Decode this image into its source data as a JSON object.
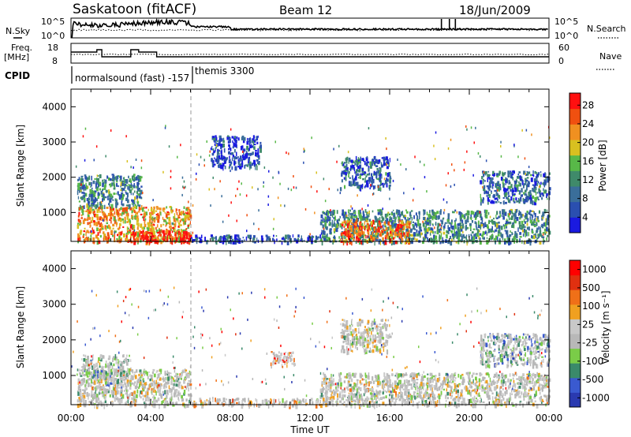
{
  "header": {
    "site": "Saskatoon (fitACF)",
    "beam": "Beam 12",
    "date": "18/Jun/2009"
  },
  "panels": {
    "nsky": {
      "left_label": "N.Sky",
      "right_label": "N.Search",
      "y_ticks": [
        "10^5",
        "10^0"
      ],
      "right_ticks": [
        "10^5",
        "10^0"
      ]
    },
    "freq": {
      "left_label_1": "Freq.",
      "left_label_2": "[MHz]",
      "right_label": "Nave",
      "y_ticks": [
        "18",
        "8"
      ],
      "right_ticks": [
        "60",
        "0"
      ]
    },
    "cpid": {
      "label": "CPID",
      "mode_1": "normalsound (fast) -157",
      "mode_2": "themis 3300"
    }
  },
  "colors": {
    "power": [
      "#1a1ae0",
      "#2a4fb0",
      "#3a6e9a",
      "#3f8a6a",
      "#58b848",
      "#d8c020",
      "#f09020",
      "#f05010",
      "#ff1010"
    ],
    "velocity": [
      "#2a3ab0",
      "#3a5ad0",
      "#3a8a6a",
      "#7acc48",
      "#b8b8b8",
      "#c8c8c8",
      "#f0a020",
      "#f07018",
      "#e03010",
      "#ff0000"
    ]
  },
  "chart_data": [
    {
      "type": "heatmap",
      "title": "Power",
      "ylabel": "Slant Range [km]",
      "ylim": [
        180,
        4500
      ],
      "y_ticks": [
        1000,
        2000,
        3000,
        4000
      ],
      "xlim": [
        "00:00",
        "24:00"
      ],
      "colorbar_label": "Power [dB]",
      "colorbar_ticks": [
        4,
        8,
        12,
        16,
        20,
        24,
        28
      ],
      "scatter_regions": [
        {
          "t0": 0.3,
          "t1": 6.0,
          "r0": 180,
          "r1": 1200,
          "level": 0.7
        },
        {
          "t0": 3.0,
          "t1": 6.0,
          "r0": 180,
          "r1": 500,
          "level": 0.95
        },
        {
          "t0": 0.3,
          "t1": 3.5,
          "r0": 1200,
          "r1": 2100,
          "level": 0.35
        },
        {
          "t0": 6.0,
          "t1": 12.5,
          "r0": 180,
          "r1": 380,
          "level": 0.2
        },
        {
          "t0": 12.5,
          "t1": 24.0,
          "r0": 180,
          "r1": 1100,
          "level": 0.35
        },
        {
          "t0": 13.5,
          "t1": 17.0,
          "r0": 180,
          "r1": 800,
          "level": 0.8
        },
        {
          "t0": 13.5,
          "t1": 16.0,
          "r0": 1700,
          "r1": 2600,
          "level": 0.25
        },
        {
          "t0": 20.5,
          "t1": 24.0,
          "r0": 1300,
          "r1": 2200,
          "level": 0.25
        },
        {
          "t0": 7.0,
          "t1": 9.5,
          "r0": 2300,
          "r1": 3200,
          "level": 0.15
        }
      ]
    },
    {
      "type": "heatmap",
      "title": "Velocity",
      "ylabel": "Slant Range [km]",
      "ylim": [
        180,
        4500
      ],
      "y_ticks": [
        1000,
        2000,
        3000,
        4000
      ],
      "xlim": [
        "00:00",
        "24:00"
      ],
      "x_ticks": [
        "00:00",
        "04:00",
        "08:00",
        "12:00",
        "16:00",
        "20:00",
        "00:00"
      ],
      "xlabel": "Time UT",
      "colorbar_label": "Velocity [m s⁻¹]",
      "colorbar_ticks": [
        1000,
        500,
        100,
        25,
        -25,
        -100,
        -500,
        -1000
      ],
      "scatter_regions": [
        {
          "t0": 0.3,
          "t1": 6.0,
          "r0": 180,
          "r1": 1200,
          "level": 0.5
        },
        {
          "t0": 0.5,
          "t1": 3.0,
          "r0": 800,
          "r1": 1600,
          "level": 0.35
        },
        {
          "t0": 6.0,
          "t1": 12.5,
          "r0": 180,
          "r1": 380,
          "level": 0.6
        },
        {
          "t0": 12.5,
          "t1": 24.0,
          "r0": 180,
          "r1": 1100,
          "level": 0.5
        },
        {
          "t0": 10.0,
          "t1": 11.2,
          "r0": 1300,
          "r1": 1700,
          "level": 0.75
        },
        {
          "t0": 13.5,
          "t1": 16.0,
          "r0": 1700,
          "r1": 2600,
          "level": 0.5
        },
        {
          "t0": 20.5,
          "t1": 24.0,
          "r0": 1300,
          "r1": 2200,
          "level": 0.3
        }
      ]
    }
  ]
}
